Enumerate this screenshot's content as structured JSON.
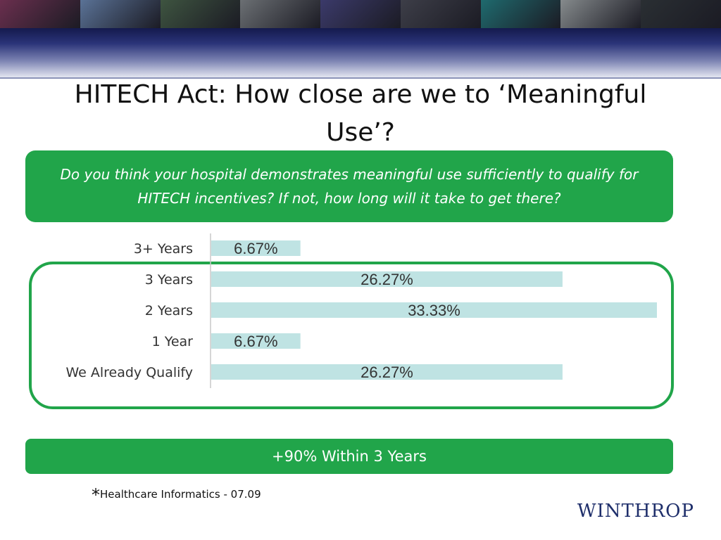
{
  "slide": {
    "title": "HITECH Act:  How close are we to ‘Meaningful Use’?",
    "question": "Do you think your hospital demonstrates meaningful use sufficiently to qualify for HITECH incentives?  If not, how long will it take to get there?",
    "summary": "+90% Within 3 Years",
    "source_star": "*",
    "source_text": "Healthcare Informatics - 07.09",
    "logo": "WINTHROP"
  },
  "colors": {
    "accent_green": "#21a54a",
    "bar_fill": "#bfe3e3",
    "banner_navy": "#1a2159",
    "logo_navy": "#1f2f6b"
  },
  "banner_tiles": [
    "#6a2f4e",
    "#5a7296",
    "#3e5440",
    "#6b6f73",
    "#3b3a6a",
    "#3d3e48",
    "#1f6a6e",
    "#858a8c",
    "#2a2f33"
  ],
  "chart_data": {
    "type": "bar",
    "orientation": "horizontal",
    "categories": [
      "3+ Years",
      "3 Years",
      "2 Years",
      "1 Year",
      "We Already Qualify"
    ],
    "values": [
      6.67,
      26.27,
      33.33,
      6.67,
      26.27
    ],
    "value_labels": [
      "6.67%",
      "26.27%",
      "33.33%",
      "6.67%",
      "26.27%"
    ],
    "xlim": [
      0,
      33.33
    ],
    "title": "",
    "xlabel": "",
    "ylabel": "",
    "grid": false,
    "legend": "none"
  }
}
